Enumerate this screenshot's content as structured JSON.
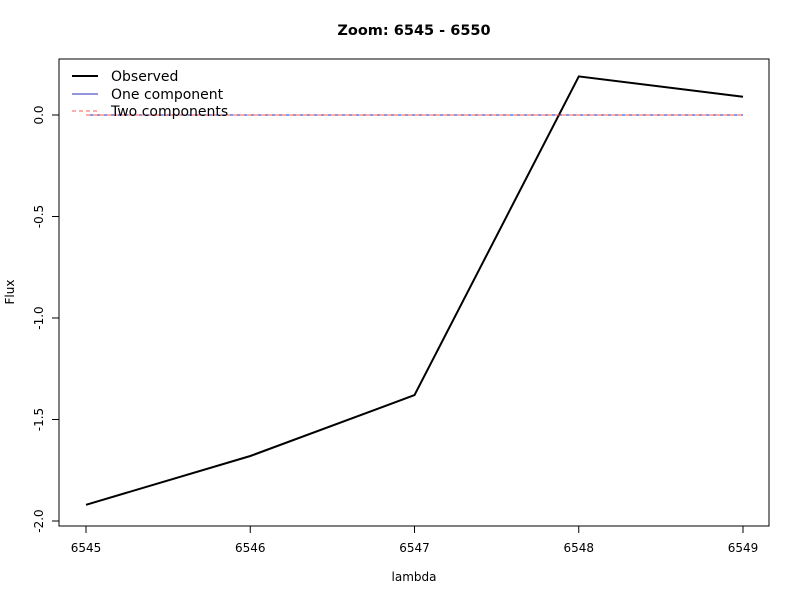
{
  "chart_data": {
    "type": "line",
    "title": "Zoom: 6545 - 6550",
    "xlabel": "lambda",
    "ylabel": "Flux",
    "xlim": [
      6545,
      6549
    ],
    "ylim": [
      -2.0,
      0.2
    ],
    "x_ticks": [
      6545,
      6546,
      6547,
      6548,
      6549
    ],
    "x_tick_labels": [
      "6545",
      "6546",
      "6547",
      "6548",
      "6549"
    ],
    "y_ticks": [
      -2.0,
      -1.5,
      -1.0,
      -0.5,
      0.0
    ],
    "y_tick_labels": [
      "-2.0",
      "-1.5",
      "-1.0",
      "-0.5",
      "0.0"
    ],
    "grid": false,
    "legend_position": "top-left",
    "series": [
      {
        "name": "Observed",
        "color": "#000000",
        "style": "solid",
        "x": [
          6545,
          6546,
          6547,
          6548,
          6549
        ],
        "y": [
          -1.92,
          -1.68,
          -1.38,
          0.19,
          0.09
        ]
      },
      {
        "name": "One component",
        "color": "#2b2bb8",
        "style": "solid",
        "x": [
          6545,
          6546,
          6547,
          6548,
          6549
        ],
        "y": [
          0.0,
          0.0,
          0.0,
          0.0,
          0.0
        ]
      },
      {
        "name": "Two components",
        "color": "#ff5a5a",
        "style": "dashed",
        "x": [
          6545,
          6546,
          6547,
          6548,
          6549
        ],
        "y": [
          0.0,
          0.0,
          0.0,
          0.0,
          0.0
        ]
      }
    ]
  }
}
